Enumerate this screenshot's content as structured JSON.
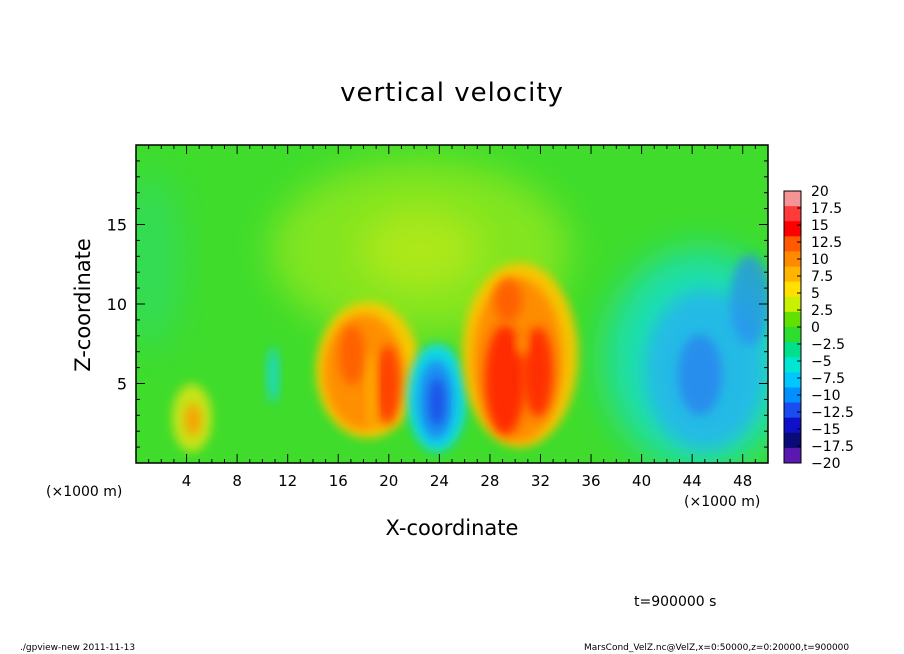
{
  "chart_data": {
    "type": "heatmap",
    "title": "vertical velocity",
    "xlabel": "X-coordinate",
    "ylabel": "Z-coordinate",
    "x_unit_label": "(×1000 m)",
    "x_unit_label_right": "(×1000 m)",
    "xlim": [
      0,
      50
    ],
    "ylim": [
      0,
      20
    ],
    "x_ticks": [
      4,
      8,
      12,
      16,
      20,
      24,
      28,
      32,
      36,
      40,
      44,
      48
    ],
    "y_ticks": [
      5,
      10,
      15
    ],
    "colorbar": {
      "levels": [
        -20,
        -17.5,
        -15,
        -12.5,
        -10,
        -7.5,
        -5,
        -2.5,
        0,
        2.5,
        5,
        7.5,
        10,
        12.5,
        15,
        17.5,
        20
      ],
      "labels": [
        "20",
        "17.5",
        "15",
        "12.5",
        "10",
        "7.5",
        "5",
        "2.5",
        "0",
        "−2.5",
        "−5",
        "−7.5",
        "−10",
        "−12.5",
        "−15",
        "−17.5",
        "−20"
      ],
      "colors": [
        "#f49494",
        "#ff3a3a",
        "#ff0000",
        "#ff5a00",
        "#ff8a00",
        "#ffb400",
        "#ffe000",
        "#c8f000",
        "#62e000",
        "#2ede2e",
        "#00e08a",
        "#00e6d2",
        "#00c8ff",
        "#0090ff",
        "#1a4cf0",
        "#1010c8",
        "#0a0a78",
        "#5a18b0"
      ]
    },
    "features": [
      {
        "x": 4.6,
        "z": 2.8,
        "value": 9
      },
      {
        "x": 17.2,
        "z": 6.5,
        "value": 12
      },
      {
        "x": 19.6,
        "z": 5.0,
        "value": 13
      },
      {
        "x": 24.2,
        "z": 3.8,
        "value": -12.5
      },
      {
        "x": 29.5,
        "z": 5.5,
        "value": 15
      },
      {
        "x": 32.2,
        "z": 6.0,
        "value": 13
      },
      {
        "x": 43.5,
        "z": 5.5,
        "value": -8
      },
      {
        "x": 47.5,
        "z": 7.0,
        "value": -8
      }
    ]
  },
  "annotation": {
    "time": "t=900000 s"
  },
  "footer": {
    "left": "./gpview-new  2011-11-13",
    "right": "MarsCond_VelZ.nc@VelZ,x=0:50000,z=0:20000,t=900000"
  }
}
